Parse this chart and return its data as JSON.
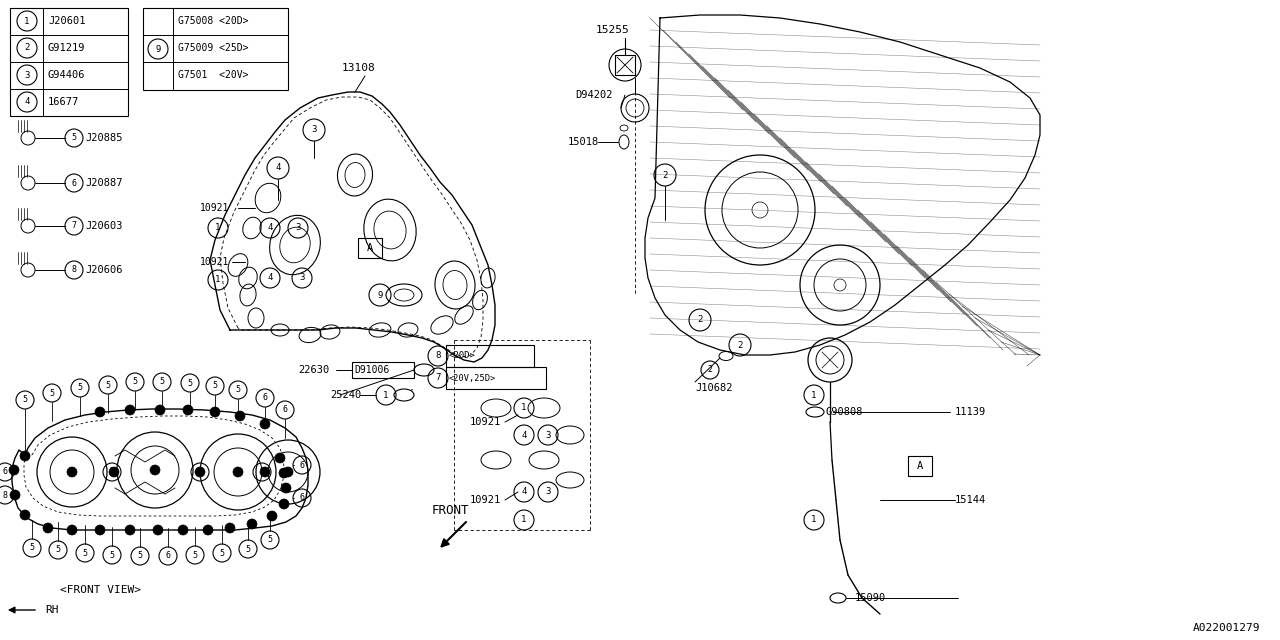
{
  "bg_color": "#ffffff",
  "line_color": "#000000",
  "part_number": "A022001279",
  "legend1": [
    [
      "1",
      "J20601"
    ],
    [
      "2",
      "G91219"
    ],
    [
      "3",
      "G94406"
    ],
    [
      "4",
      "16677"
    ]
  ],
  "legend2_num": "9",
  "legend2_codes": [
    "G75008 <20D>",
    "G75009 <25D>",
    "G7501  <20V>"
  ],
  "legend_bolts": [
    [
      "5",
      "J20885"
    ],
    [
      "6",
      "J20887"
    ],
    [
      "7",
      "J20603"
    ],
    [
      "8",
      "J20606"
    ]
  ]
}
